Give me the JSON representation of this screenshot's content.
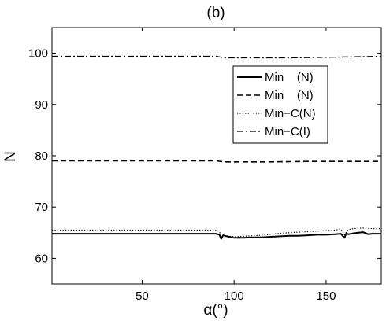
{
  "chart_data": {
    "type": "line",
    "title": "(b)",
    "xlabel": "α(°)",
    "ylabel": "N",
    "xlim": [
      1,
      180
    ],
    "ylim": [
      55,
      105
    ],
    "xticks": [
      50,
      100,
      150
    ],
    "yticks": [
      60,
      70,
      80,
      90,
      100
    ],
    "grid": false,
    "legend_position": "top-right",
    "series": [
      {
        "name": "Min    (N)",
        "style": "solid",
        "color": "#000000",
        "x": [
          1,
          20,
          40,
          60,
          80,
          90,
          92,
          93,
          94,
          96,
          100,
          105,
          110,
          115,
          120,
          125,
          130,
          135,
          140,
          145,
          150,
          155,
          158,
          160,
          161,
          162,
          165,
          170,
          173,
          175,
          180
        ],
        "y": [
          64.8,
          64.8,
          64.8,
          64.8,
          64.8,
          64.8,
          64.6,
          63.8,
          64.5,
          64.3,
          64.0,
          64.0,
          64.1,
          64.1,
          64.2,
          64.3,
          64.4,
          64.4,
          64.5,
          64.6,
          64.6,
          64.7,
          64.8,
          64.0,
          64.9,
          64.7,
          64.9,
          65.1,
          64.7,
          64.8,
          64.8
        ]
      },
      {
        "name": "Min    (N)",
        "style": "dashed",
        "color": "#000000",
        "x": [
          1,
          90,
          95,
          105,
          120,
          140,
          160,
          180
        ],
        "y": [
          79.0,
          79.0,
          78.8,
          78.8,
          78.8,
          78.9,
          78.9,
          78.9
        ]
      },
      {
        "name": "Min−C(N)",
        "style": "dotted",
        "color": "#000000",
        "x": [
          1,
          20,
          40,
          60,
          80,
          90,
          92,
          93,
          95,
          100,
          105,
          110,
          115,
          120,
          125,
          130,
          135,
          140,
          145,
          150,
          155,
          158,
          160,
          162,
          165,
          170,
          175,
          180
        ],
        "y": [
          65.5,
          65.5,
          65.5,
          65.5,
          65.5,
          65.5,
          65.3,
          64.2,
          64.4,
          64.2,
          64.3,
          64.4,
          64.5,
          64.7,
          64.9,
          65.0,
          65.1,
          65.2,
          65.3,
          65.4,
          65.5,
          65.7,
          64.6,
          65.6,
          65.8,
          65.9,
          65.8,
          65.8
        ]
      },
      {
        "name": "Min−C(I)",
        "style": "dashdot",
        "color": "#000000",
        "x": [
          1,
          90,
          95,
          110,
          130,
          150,
          165,
          180
        ],
        "y": [
          99.4,
          99.4,
          99.1,
          99.1,
          99.1,
          99.2,
          99.3,
          99.4
        ]
      }
    ]
  }
}
